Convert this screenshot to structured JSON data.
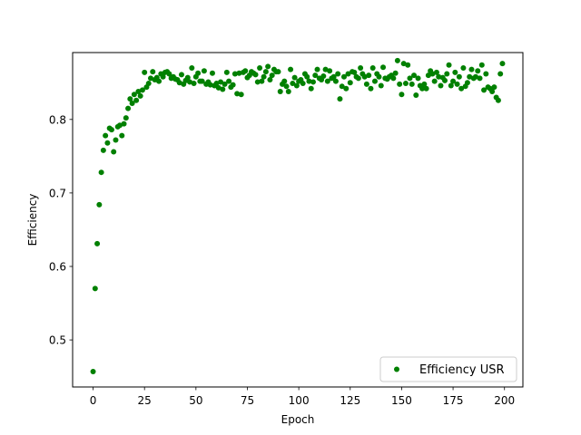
{
  "chart_data": {
    "type": "scatter",
    "title": "",
    "xlabel": "Epoch",
    "ylabel": "Efficiency",
    "xlim": [
      -9.95,
      208.95
    ],
    "ylim": [
      0.436,
      0.891
    ],
    "xticks": [
      0,
      25,
      50,
      75,
      100,
      125,
      150,
      175,
      200
    ],
    "yticks": [
      0.5,
      0.6,
      0.7,
      0.8
    ],
    "grid": false,
    "legend_position": "lower-right",
    "series": [
      {
        "name": "Efficiency USR",
        "color": "#008000",
        "x": [
          0,
          1,
          2,
          3,
          4,
          5,
          6,
          7,
          8,
          9,
          10,
          11,
          12,
          13,
          14,
          15,
          16,
          17,
          18,
          19,
          20,
          21,
          22,
          23,
          24,
          25,
          26,
          27,
          28,
          29,
          30,
          31,
          32,
          33,
          34,
          35,
          36,
          37,
          38,
          39,
          40,
          41,
          42,
          43,
          44,
          45,
          46,
          47,
          48,
          49,
          50,
          51,
          52,
          53,
          54,
          55,
          56,
          57,
          58,
          59,
          60,
          61,
          62,
          63,
          64,
          65,
          66,
          67,
          68,
          69,
          70,
          71,
          72,
          73,
          74,
          75,
          76,
          77,
          78,
          79,
          80,
          81,
          82,
          83,
          84,
          85,
          86,
          87,
          88,
          89,
          90,
          91,
          92,
          93,
          94,
          95,
          96,
          97,
          98,
          99,
          100,
          101,
          102,
          103,
          104,
          105,
          106,
          107,
          108,
          109,
          110,
          111,
          112,
          113,
          114,
          115,
          116,
          117,
          118,
          119,
          120,
          121,
          122,
          123,
          124,
          125,
          126,
          127,
          128,
          129,
          130,
          131,
          132,
          133,
          134,
          135,
          136,
          137,
          138,
          139,
          140,
          141,
          142,
          143,
          144,
          145,
          146,
          147,
          148,
          149,
          150,
          151,
          152,
          153,
          154,
          155,
          156,
          157,
          158,
          159,
          160,
          161,
          162,
          163,
          164,
          165,
          166,
          167,
          168,
          169,
          170,
          171,
          172,
          173,
          174,
          175,
          176,
          177,
          178,
          179,
          180,
          181,
          182,
          183,
          184,
          185,
          186,
          187,
          188,
          189,
          190,
          191,
          192,
          193,
          194,
          195,
          196,
          197,
          198,
          199
        ],
        "y": [
          0.457,
          0.57,
          0.631,
          0.684,
          0.728,
          0.758,
          0.778,
          0.768,
          0.788,
          0.786,
          0.756,
          0.772,
          0.79,
          0.792,
          0.778,
          0.794,
          0.802,
          0.815,
          0.828,
          0.822,
          0.834,
          0.826,
          0.838,
          0.832,
          0.84,
          0.864,
          0.844,
          0.849,
          0.856,
          0.865,
          0.854,
          0.857,
          0.852,
          0.862,
          0.858,
          0.864,
          0.865,
          0.862,
          0.856,
          0.858,
          0.855,
          0.854,
          0.85,
          0.861,
          0.848,
          0.853,
          0.857,
          0.851,
          0.87,
          0.849,
          0.858,
          0.863,
          0.852,
          0.852,
          0.866,
          0.848,
          0.851,
          0.847,
          0.863,
          0.846,
          0.849,
          0.843,
          0.851,
          0.841,
          0.848,
          0.864,
          0.852,
          0.844,
          0.847,
          0.862,
          0.835,
          0.863,
          0.834,
          0.864,
          0.866,
          0.857,
          0.86,
          0.865,
          0.863,
          0.861,
          0.851,
          0.87,
          0.852,
          0.858,
          0.865,
          0.872,
          0.854,
          0.86,
          0.868,
          0.865,
          0.865,
          0.838,
          0.848,
          0.852,
          0.845,
          0.838,
          0.868,
          0.849,
          0.857,
          0.846,
          0.852,
          0.854,
          0.849,
          0.862,
          0.858,
          0.852,
          0.842,
          0.851,
          0.86,
          0.868,
          0.856,
          0.854,
          0.859,
          0.868,
          0.852,
          0.866,
          0.856,
          0.858,
          0.852,
          0.862,
          0.828,
          0.845,
          0.858,
          0.842,
          0.862,
          0.85,
          0.865,
          0.864,
          0.858,
          0.856,
          0.87,
          0.862,
          0.858,
          0.848,
          0.86,
          0.842,
          0.87,
          0.852,
          0.862,
          0.858,
          0.846,
          0.871,
          0.856,
          0.855,
          0.858,
          0.86,
          0.856,
          0.863,
          0.88,
          0.848,
          0.834,
          0.876,
          0.849,
          0.874,
          0.856,
          0.848,
          0.86,
          0.833,
          0.856,
          0.846,
          0.842,
          0.848,
          0.842,
          0.86,
          0.866,
          0.862,
          0.852,
          0.864,
          0.858,
          0.846,
          0.857,
          0.853,
          0.862,
          0.874,
          0.846,
          0.852,
          0.864,
          0.848,
          0.858,
          0.842,
          0.87,
          0.845,
          0.85,
          0.858,
          0.868,
          0.856,
          0.858,
          0.866,
          0.856,
          0.874,
          0.84,
          0.862,
          0.844,
          0.842,
          0.838,
          0.844,
          0.83,
          0.826,
          0.862,
          0.876
        ]
      }
    ]
  }
}
